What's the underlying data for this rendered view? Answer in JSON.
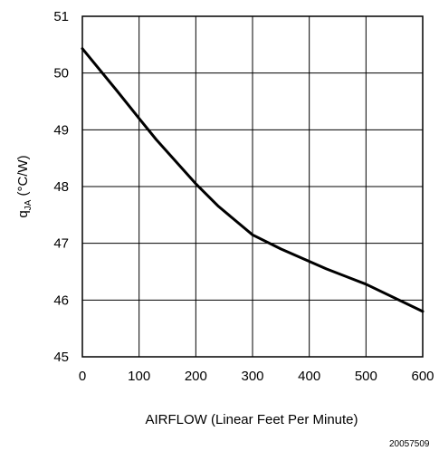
{
  "chart_data": {
    "type": "line",
    "xlabel": "AIRFLOW (Linear Feet Per Minute)",
    "ylabel": {
      "main": "q",
      "sub": "JA",
      "unit": " (°C/W)"
    },
    "xlim": [
      0,
      600
    ],
    "ylim": [
      45,
      51
    ],
    "x_ticks": [
      0,
      100,
      200,
      300,
      400,
      500,
      600
    ],
    "y_ticks": [
      45,
      46,
      47,
      48,
      49,
      50,
      51
    ],
    "grid": true,
    "series": [
      {
        "x": [
          0,
          60,
          100,
          130,
          200,
          240,
          300,
          350,
          430,
          500,
          600
        ],
        "y": [
          50.43,
          49.7,
          49.2,
          48.83,
          48.05,
          47.65,
          47.15,
          46.9,
          46.55,
          46.28,
          45.8
        ],
        "color": "#000000"
      }
    ],
    "figure_id": "20057509"
  }
}
